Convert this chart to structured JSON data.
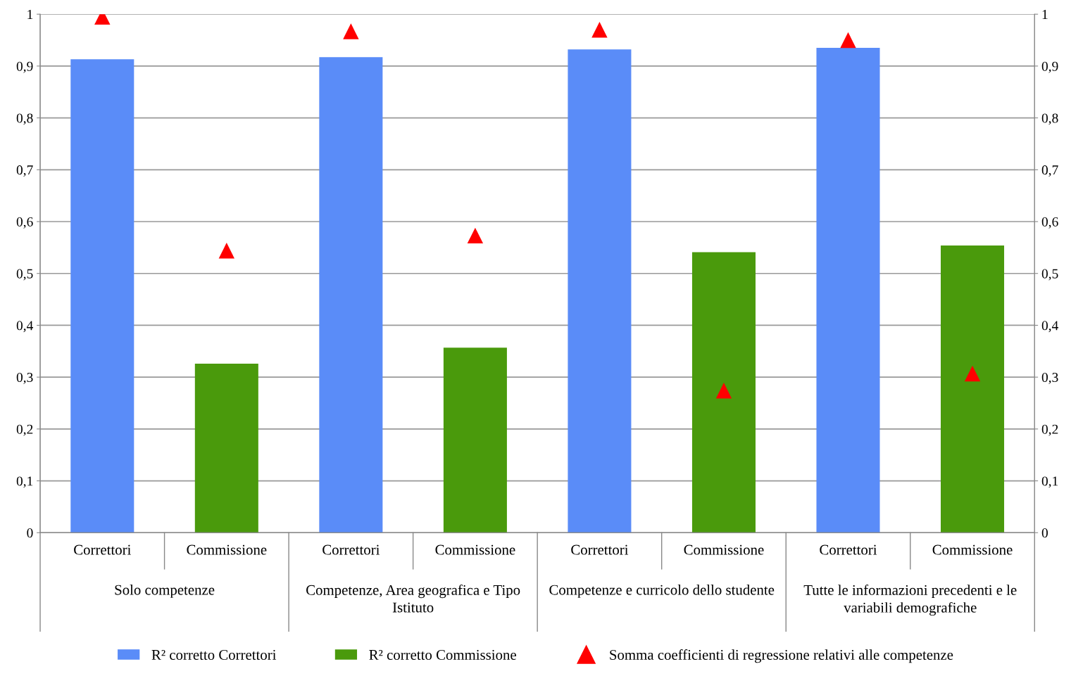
{
  "chart_data": {
    "type": "bar",
    "categories": [
      "Correttori",
      "Commissione",
      "Correttori",
      "Commissione",
      "Correttori",
      "Commissione",
      "Correttori",
      "Commissione"
    ],
    "series": [
      {
        "name": "R² corretto Correttori",
        "color": "#5a8cf8",
        "values": [
          0.913,
          null,
          0.917,
          null,
          0.932,
          null,
          0.935,
          null
        ]
      },
      {
        "name": "R² corretto Commissione",
        "color": "#4a9a0c",
        "values": [
          null,
          0.326,
          null,
          0.357,
          null,
          0.541,
          null,
          0.554
        ]
      },
      {
        "name": "Somma coefficienti di regressione relativi alle competenze",
        "type": "scatter",
        "color": "#ff0000",
        "marker": "triangle",
        "values": [
          0.995,
          0.544,
          0.967,
          0.573,
          0.97,
          0.274,
          0.95,
          0.307
        ]
      }
    ],
    "annotations": [
      "Solo competenze",
      "Competenze, Area geografica e Tipo Istituto",
      "Competenze e curricolo dello studente",
      "Tutte le informazioni precedenti e le variabili demografiche"
    ],
    "ylim": [
      0,
      1
    ],
    "yticks": [
      0,
      {
        "value": 0.1,
        "label": "0,1"
      },
      {
        "value": 0.2,
        "label": "0,2"
      },
      {
        "value": 0.3,
        "label": "0,3"
      },
      {
        "value": 0.4,
        "label": "0,4"
      },
      {
        "value": 0.5,
        "label": "0,5"
      },
      {
        "value": 0.6,
        "label": "0,6"
      },
      {
        "value": 0.7,
        "label": "0,7"
      },
      {
        "value": 0.8,
        "label": "0,8"
      },
      {
        "value": 0.9,
        "label": "0,9"
      },
      1
    ],
    "y2lim": [
      0,
      1
    ],
    "y2ticks": [
      0,
      {
        "value": 0.1,
        "label": "0,1"
      },
      {
        "value": 0.2,
        "label": "0,2"
      },
      {
        "value": 0.3,
        "label": "0,3"
      },
      {
        "value": 0.4,
        "label": "0,4"
      },
      {
        "value": 0.5,
        "label": "0,5"
      },
      {
        "value": 0.6,
        "label": "0,6"
      },
      {
        "value": 0.7,
        "label": "0,7"
      },
      {
        "value": 0.8,
        "label": "0,8"
      },
      {
        "value": 0.9,
        "label": "0,9"
      },
      1
    ],
    "grid": "y",
    "legend": "bottom"
  }
}
